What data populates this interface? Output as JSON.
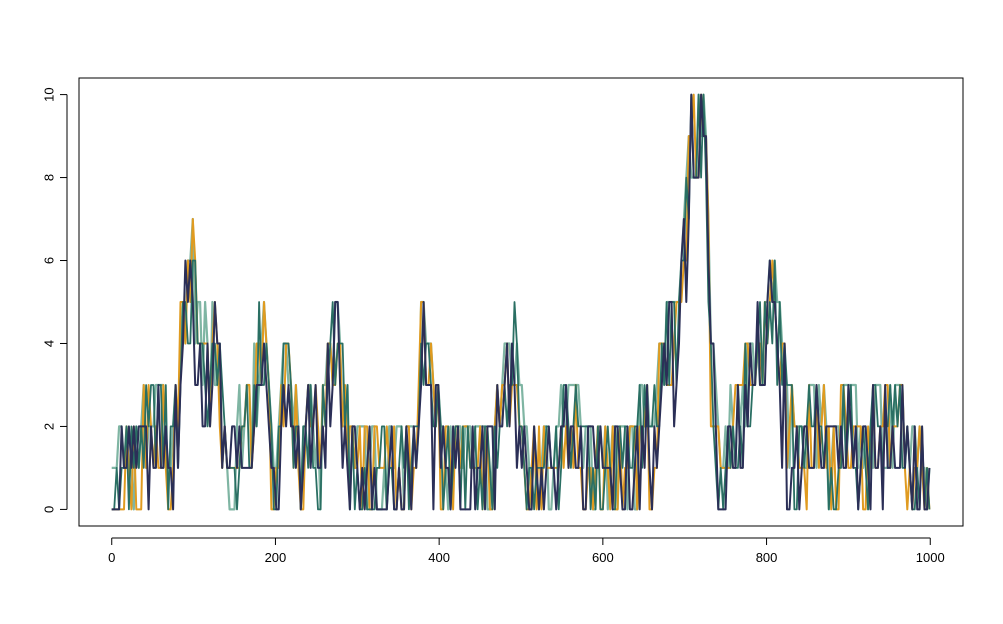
{
  "chart_data": {
    "type": "line",
    "title": "",
    "xlabel": "",
    "ylabel": "",
    "xlim": [
      -40,
      1040
    ],
    "ylim": [
      -0.4,
      10.4
    ],
    "x_ticks": [
      0,
      200,
      400,
      600,
      800,
      1000
    ],
    "y_ticks": [
      0,
      2,
      4,
      6,
      8,
      10
    ],
    "grid": false,
    "legend": "none",
    "colors": [
      "#7fb5a3",
      "#e09b20",
      "#2a6f63",
      "#2b2f57"
    ],
    "envelope_x": [
      0,
      18,
      30,
      45,
      60,
      75,
      80,
      85,
      90,
      95,
      100,
      105,
      110,
      118,
      125,
      130,
      135,
      140,
      150,
      160,
      170,
      180,
      185,
      190,
      195,
      200,
      210,
      215,
      225,
      235,
      245,
      255,
      265,
      275,
      285,
      295,
      310,
      330,
      350,
      370,
      378,
      385,
      395,
      405,
      420,
      440,
      460,
      475,
      485,
      492,
      500,
      510,
      520,
      540,
      555,
      565,
      580,
      600,
      620,
      640,
      650,
      660,
      670,
      680,
      690,
      700,
      708,
      714,
      720,
      726,
      732,
      738,
      745,
      755,
      765,
      780,
      790,
      800,
      808,
      815,
      825,
      840,
      860,
      880,
      900,
      920,
      940,
      960,
      980,
      1000
    ],
    "envelope_y": [
      1,
      2,
      2,
      3,
      3,
      2,
      3,
      5,
      6,
      6,
      7,
      5,
      5,
      4,
      5,
      5,
      3,
      1,
      2,
      3,
      3,
      5,
      5,
      4,
      2,
      1,
      4,
      4,
      3,
      2,
      3,
      2,
      4,
      5,
      3,
      2,
      2,
      2,
      2,
      2,
      5,
      4,
      3,
      2,
      2,
      2,
      2,
      3,
      4,
      5,
      3,
      1,
      2,
      2,
      3,
      3,
      2,
      2,
      2,
      2,
      3,
      2,
      4,
      5,
      5,
      7,
      10,
      10,
      10,
      9,
      4,
      3,
      1,
      3,
      3,
      4,
      5,
      5,
      6,
      5,
      3,
      2,
      3,
      2,
      3,
      2,
      3,
      3,
      2,
      1
    ]
  }
}
